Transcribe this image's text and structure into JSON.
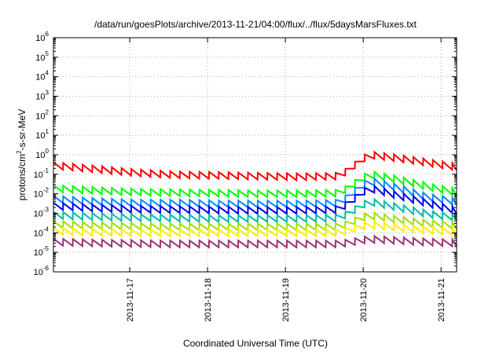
{
  "chart_data": {
    "type": "line",
    "title": "/data/run/goesPlots/archive/2013-11-21/04:00/flux/../flux/5daysMarsFluxes.txt",
    "xlabel": "Coordinated Universal Time (UTC)",
    "ylabel_parts": {
      "base": "protons/cm",
      "sup": "2",
      "rest": "-s-sr-MeV"
    },
    "y_scale": "log",
    "ylim_exponents": [
      -6,
      6
    ],
    "y_tick_labels": [
      {
        "base": "10",
        "exp": "-6"
      },
      {
        "base": "10",
        "exp": "-5"
      },
      {
        "base": "10",
        "exp": "-4"
      },
      {
        "base": "10",
        "exp": "-3"
      },
      {
        "base": "10",
        "exp": "-2"
      },
      {
        "base": "10",
        "exp": "-1"
      },
      {
        "base": "10",
        "exp": "0"
      },
      {
        "base": "10",
        "exp": "1"
      },
      {
        "base": "10",
        "exp": "2"
      },
      {
        "base": "10",
        "exp": "3"
      },
      {
        "base": "10",
        "exp": "4"
      },
      {
        "base": "10",
        "exp": "5"
      },
      {
        "base": "10",
        "exp": "6"
      }
    ],
    "xlim_days": [
      -0.98,
      4.2
    ],
    "x_ticks": [
      {
        "label": "2013-11-17",
        "day": 0
      },
      {
        "label": "2013-11-18",
        "day": 1
      },
      {
        "label": "2013-11-19",
        "day": 2
      },
      {
        "label": "2013-11-20",
        "day": 3
      },
      {
        "label": "2013-11-21",
        "day": 4
      }
    ],
    "grid": true,
    "series": [
      {
        "color": "#ff0000",
        "pre": [
          0.42,
          0.28,
          0.18,
          0.14,
          0.13,
          0.12,
          0.11,
          0.12
        ],
        "post": [
          0.12,
          1.5,
          1.0,
          0.6,
          0.35
        ]
      },
      {
        "color": "#00ff00",
        "pre": [
          0.028,
          0.022,
          0.018,
          0.017,
          0.016,
          0.015,
          0.015,
          0.016
        ],
        "post": [
          0.016,
          0.15,
          0.08,
          0.035,
          0.018
        ]
      },
      {
        "color": "#0088ff",
        "pre": [
          0.008,
          0.006,
          0.005,
          0.005,
          0.0046,
          0.0045,
          0.0045,
          0.005
        ],
        "post": [
          0.005,
          0.07,
          0.03,
          0.01,
          0.006
        ]
      },
      {
        "color": "#0000ee",
        "pre": [
          0.0035,
          0.0028,
          0.0024,
          0.0023,
          0.0022,
          0.0021,
          0.0021,
          0.0023
        ],
        "post": [
          0.0023,
          0.03,
          0.012,
          0.005,
          0.002
        ]
      },
      {
        "color": "#00bbaa",
        "pre": [
          0.0012,
          0.001,
          0.0009,
          0.00085,
          0.0008,
          0.0008,
          0.0008,
          0.00085
        ],
        "post": [
          0.00085,
          0.006,
          0.003,
          0.0014,
          0.0009
        ]
      },
      {
        "color": "#9fdf00",
        "pre": [
          0.0004,
          0.00035,
          0.00032,
          0.0003,
          0.0003,
          0.0003,
          0.0003,
          0.0003
        ],
        "post": [
          0.0003,
          0.0012,
          0.0007,
          0.00045,
          0.00035
        ]
      },
      {
        "color": "#ffee00",
        "pre": [
          0.00018,
          0.00016,
          0.00015,
          0.00015,
          0.00015,
          0.00015,
          0.00015,
          0.00015
        ],
        "post": [
          0.00015,
          0.0004,
          0.00028,
          0.0002,
          0.00017
        ]
      },
      {
        "color": "#993377",
        "pre": [
          5e-05,
          4.5e-05,
          4.2e-05,
          4e-05,
          4e-05,
          4e-05,
          4e-05,
          4e-05
        ],
        "post": [
          4e-05,
          7e-05,
          6e-05,
          5e-05,
          4.5e-05
        ]
      }
    ]
  }
}
